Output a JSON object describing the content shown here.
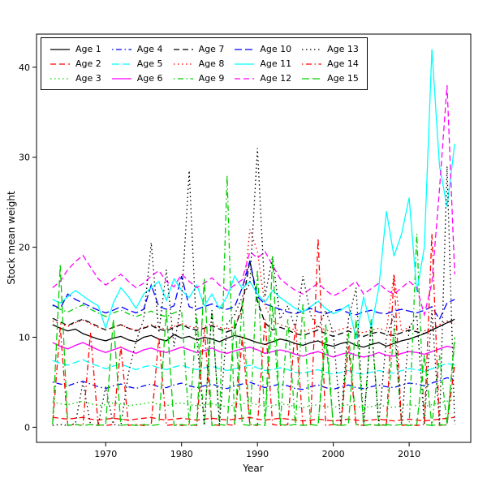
{
  "chart_data": {
    "type": "line",
    "title": "",
    "xlabel": "Year",
    "ylabel": "Stock mean weight",
    "xlim": [
      1963,
      2016
    ],
    "ylim": [
      0,
      42
    ],
    "x_ticks": [
      1970,
      1980,
      1990,
      2000,
      2010
    ],
    "y_ticks": [
      0,
      10,
      20,
      30,
      40
    ],
    "grid": false,
    "legend_position": "top-left-inside",
    "years": [
      1963,
      1964,
      1965,
      1966,
      1967,
      1968,
      1969,
      1970,
      1971,
      1972,
      1973,
      1974,
      1975,
      1976,
      1977,
      1978,
      1979,
      1980,
      1981,
      1982,
      1983,
      1984,
      1985,
      1986,
      1987,
      1988,
      1989,
      1990,
      1991,
      1992,
      1993,
      1994,
      1995,
      1996,
      1997,
      1998,
      1999,
      2000,
      2001,
      2002,
      2003,
      2004,
      2005,
      2006,
      2007,
      2008,
      2009,
      2010,
      2011,
      2012,
      2013,
      2014,
      2015,
      2016
    ],
    "series": [
      {
        "name": "Age 1",
        "color": "#000000",
        "linetype": "solid",
        "values": [
          11.4,
          11.0,
          10.7,
          10.9,
          10.4,
          10.1,
          9.8,
          9.6,
          9.9,
          10.1,
          9.7,
          9.5,
          10.0,
          10.2,
          9.8,
          9.6,
          10.3,
          9.9,
          10.1,
          9.7,
          10.0,
          9.8,
          9.5,
          9.9,
          10.2,
          10.0,
          9.7,
          9.4,
          9.2,
          9.5,
          9.8,
          9.6,
          9.3,
          9.1,
          9.4,
          9.6,
          9.2,
          9.0,
          9.3,
          9.5,
          9.1,
          8.9,
          9.2,
          9.4,
          9.0,
          9.3,
          9.6,
          9.8,
          10.1,
          10.4,
          10.8,
          11.2,
          11.6,
          12.0
        ]
      },
      {
        "name": "Age 2",
        "color": "#FF0000",
        "linetype": "dashed",
        "values": [
          1.1,
          1.0,
          0.9,
          1.0,
          1.1,
          0.9,
          0.8,
          0.9,
          1.0,
          0.9,
          0.8,
          0.9,
          1.0,
          1.1,
          0.9,
          0.8,
          0.9,
          1.0,
          0.9,
          0.8,
          0.9,
          1.0,
          0.9,
          0.8,
          0.9,
          1.0,
          1.1,
          0.9,
          0.8,
          0.9,
          1.0,
          0.9,
          0.8,
          0.7,
          0.8,
          0.9,
          0.8,
          0.7,
          0.8,
          0.9,
          0.8,
          0.7,
          0.8,
          0.9,
          0.8,
          0.7,
          0.8,
          0.9,
          0.8,
          0.7,
          0.8,
          0.9,
          1.0,
          1.1
        ]
      },
      {
        "name": "Age 3",
        "color": "#00CD00",
        "linetype": "dotted",
        "values": [
          2.8,
          2.6,
          2.5,
          2.7,
          2.9,
          2.6,
          2.4,
          2.5,
          2.7,
          2.6,
          2.4,
          2.5,
          2.6,
          2.8,
          2.5,
          2.4,
          2.6,
          2.7,
          2.5,
          2.4,
          2.5,
          2.6,
          2.4,
          2.3,
          2.5,
          2.6,
          2.7,
          2.5,
          2.3,
          2.4,
          2.6,
          2.5,
          2.3,
          2.2,
          2.4,
          2.5,
          2.3,
          2.2,
          2.4,
          2.5,
          2.3,
          2.2,
          2.3,
          2.5,
          2.3,
          2.2,
          2.4,
          2.5,
          2.4,
          2.3,
          2.5,
          2.7,
          2.9,
          3.1
        ]
      },
      {
        "name": "Age 4",
        "color": "#0000FF",
        "linetype": "dotdash",
        "values": [
          5.0,
          4.8,
          4.6,
          4.9,
          5.1,
          4.8,
          4.5,
          4.3,
          4.6,
          4.8,
          4.5,
          4.3,
          4.6,
          4.8,
          4.5,
          4.4,
          4.7,
          4.9,
          4.6,
          4.4,
          4.6,
          4.8,
          4.5,
          4.3,
          4.6,
          4.8,
          5.0,
          4.7,
          4.4,
          4.6,
          4.8,
          4.6,
          4.3,
          4.2,
          4.5,
          4.7,
          4.4,
          4.2,
          4.5,
          4.7,
          4.4,
          4.3,
          4.5,
          4.7,
          4.5,
          4.4,
          4.7,
          4.9,
          4.8,
          4.6,
          4.9,
          5.2,
          5.5,
          5.3
        ]
      },
      {
        "name": "Age 5",
        "color": "#00FFFF",
        "linetype": "longdash",
        "values": [
          7.4,
          7.1,
          6.9,
          7.2,
          7.5,
          7.1,
          6.8,
          6.5,
          6.8,
          7.0,
          6.7,
          6.4,
          6.7,
          6.9,
          6.6,
          6.4,
          6.7,
          6.9,
          6.6,
          6.4,
          6.6,
          6.8,
          6.5,
          6.3,
          6.5,
          6.7,
          6.9,
          6.6,
          6.3,
          6.4,
          6.6,
          6.4,
          6.1,
          6.0,
          6.2,
          6.4,
          6.1,
          5.9,
          6.1,
          6.3,
          6.0,
          5.9,
          6.1,
          6.3,
          6.1,
          6.0,
          6.3,
          6.5,
          6.4,
          6.2,
          6.5,
          6.8,
          7.1,
          6.9
        ]
      },
      {
        "name": "Age 6",
        "color": "#FF00FF",
        "linetype": "solid",
        "values": [
          9.4,
          9.0,
          8.7,
          9.1,
          9.4,
          9.0,
          8.6,
          8.3,
          8.6,
          8.9,
          8.5,
          8.2,
          8.6,
          8.8,
          8.5,
          8.3,
          8.6,
          8.9,
          8.6,
          8.3,
          8.5,
          8.8,
          8.4,
          8.2,
          8.5,
          8.7,
          8.9,
          8.6,
          8.2,
          8.4,
          8.6,
          8.4,
          8.1,
          7.9,
          8.2,
          8.4,
          8.1,
          7.8,
          8.1,
          8.3,
          8.0,
          7.8,
          8.0,
          8.3,
          8.0,
          7.9,
          8.2,
          8.4,
          8.3,
          8.1,
          8.4,
          8.7,
          9.0,
          8.8
        ]
      },
      {
        "name": "Age 7",
        "color": "#000000",
        "linetype": "dashed",
        "values": [
          12.1,
          11.7,
          11.3,
          11.7,
          12.0,
          11.6,
          11.2,
          10.8,
          11.1,
          11.4,
          11.0,
          10.7,
          11.0,
          11.3,
          10.9,
          10.7,
          11.1,
          11.4,
          11.0,
          10.8,
          11.0,
          11.3,
          10.9,
          10.6,
          10.9,
          13.5,
          18.5,
          14.0,
          11.6,
          10.8,
          11.1,
          10.8,
          10.4,
          10.2,
          10.5,
          10.8,
          10.4,
          10.1,
          10.4,
          10.7,
          10.3,
          10.1,
          10.4,
          10.6,
          10.3,
          10.2,
          10.5,
          10.8,
          10.6,
          10.4,
          10.8,
          11.2,
          11.6,
          11.9
        ]
      },
      {
        "name": "Age 8",
        "color": "#FF0000",
        "linetype": "dotted",
        "values": [
          11.8,
          11.5,
          11.2,
          11.6,
          11.9,
          11.5,
          11.1,
          10.8,
          11.1,
          11.4,
          11.0,
          10.8,
          11.1,
          11.4,
          11.1,
          10.9,
          11.2,
          11.5,
          11.2,
          11.0,
          11.2,
          11.5,
          11.1,
          10.9,
          11.2,
          13.0,
          22.0,
          19.5,
          13.5,
          11.8,
          11.4,
          11.1,
          10.8,
          10.6,
          10.9,
          11.2,
          10.8,
          10.6,
          10.9,
          11.1,
          10.7,
          10.5,
          10.8,
          11.0,
          10.7,
          17.0,
          10.6,
          11.2,
          10.9,
          10.7,
          11.0,
          11.4,
          11.8,
          11.5
        ]
      },
      {
        "name": "Age 9",
        "color": "#00CD00",
        "linetype": "dotdash",
        "values": [
          13.5,
          13.1,
          12.8,
          13.2,
          13.6,
          13.1,
          12.7,
          12.3,
          12.7,
          13.0,
          12.6,
          12.3,
          12.6,
          12.9,
          12.5,
          12.3,
          12.7,
          13.0,
          0.3,
          12.5,
          0.2,
          13.0,
          0.3,
          28.0,
          0.2,
          14.0,
          0.3,
          17.5,
          0.2,
          13.5,
          0.3,
          12.0,
          0.2,
          13.8,
          0.3,
          0.2,
          11.5,
          0.3,
          0.2,
          10.5,
          0.3,
          0.2,
          12.0,
          0.3,
          0.2,
          11.0,
          0.3,
          0.2,
          21.5,
          0.3,
          0.2,
          8.0,
          0.3,
          9.5
        ]
      },
      {
        "name": "Age 10",
        "color": "#0000FF",
        "linetype": "longdash",
        "values": [
          13.6,
          13.2,
          14.8,
          14.2,
          13.8,
          13.4,
          13.0,
          12.7,
          13.0,
          13.4,
          13.0,
          12.7,
          13.1,
          15.8,
          13.4,
          13.1,
          13.5,
          16.8,
          13.4,
          13.1,
          13.4,
          13.7,
          13.3,
          13.1,
          13.4,
          15.5,
          18.5,
          14.5,
          13.7,
          13.4,
          13.1,
          12.8,
          12.6,
          12.9,
          13.2,
          12.8,
          12.6,
          12.9,
          13.1,
          12.7,
          12.5,
          12.8,
          13.0,
          12.7,
          12.6,
          12.9,
          13.1,
          12.9,
          12.7,
          13.0,
          13.4,
          12.0,
          13.8,
          14.2
        ]
      },
      {
        "name": "Age 11",
        "color": "#00FFFF",
        "linetype": "solid",
        "values": [
          14.2,
          13.8,
          14.5,
          15.2,
          14.6,
          14.0,
          13.5,
          11.0,
          13.8,
          15.5,
          14.5,
          13.2,
          14.8,
          15.5,
          16.2,
          14.1,
          16.5,
          15.2,
          14.4,
          15.8,
          13.5,
          14.8,
          13.2,
          14.5,
          16.8,
          15.4,
          16.2,
          14.8,
          13.9,
          15.2,
          14.4,
          13.8,
          13.2,
          12.8,
          13.4,
          14.0,
          13.2,
          12.6,
          13.0,
          13.6,
          9.8,
          14.5,
          11.0,
          15.5,
          24.0,
          19.0,
          21.5,
          25.5,
          15.0,
          20.0,
          42.0,
          29.0,
          24.5,
          31.5
        ]
      },
      {
        "name": "Age 12",
        "color": "#FF00FF",
        "linetype": "dashed",
        "values": [
          15.5,
          16.2,
          17.5,
          18.4,
          19.1,
          17.8,
          16.5,
          15.8,
          16.4,
          17.0,
          16.2,
          15.5,
          16.0,
          16.8,
          17.4,
          16.2,
          15.6,
          17.0,
          16.2,
          15.5,
          16.0,
          16.6,
          15.8,
          15.2,
          15.8,
          16.4,
          19.5,
          18.8,
          19.5,
          18.0,
          16.5,
          15.8,
          15.2,
          14.8,
          15.4,
          16.0,
          15.2,
          14.6,
          15.0,
          15.6,
          16.2,
          14.8,
          15.4,
          16.0,
          15.2,
          14.8,
          15.5,
          16.2,
          15.5,
          12.5,
          16.0,
          26.5,
          38.0,
          17.0
        ]
      },
      {
        "name": "Age 13",
        "color": "#000000",
        "linetype": "dotted",
        "values": [
          0.2,
          0.3,
          0.2,
          0.4,
          5.0,
          0.3,
          0.2,
          4.5,
          0.3,
          0.2,
          6.0,
          9.5,
          12.0,
          20.5,
          10.5,
          17.5,
          9.0,
          14.0,
          28.5,
          10.0,
          0.2,
          13.0,
          0.3,
          11.5,
          12.5,
          14.5,
          16.0,
          31.0,
          14.5,
          19.0,
          12.0,
          13.5,
          11.0,
          16.8,
          12.5,
          11.0,
          13.0,
          10.5,
          0.3,
          12.0,
          15.5,
          0.2,
          11.5,
          0.3,
          10.0,
          12.5,
          0.2,
          11.0,
          12.5,
          0.3,
          13.0,
          0.2,
          29.0,
          0.3
        ]
      },
      {
        "name": "Age 14",
        "color": "#FF0000",
        "linetype": "dotdash",
        "values": [
          0.3,
          11.2,
          0.2,
          0.3,
          0.2,
          10.5,
          0.3,
          0.2,
          0.3,
          9.0,
          0.2,
          0.3,
          0.2,
          0.3,
          10.0,
          0.2,
          0.3,
          0.2,
          0.3,
          0.2,
          11.0,
          0.3,
          0.2,
          0.3,
          0.2,
          10.0,
          0.3,
          0.2,
          12.0,
          0.3,
          0.2,
          0.3,
          11.5,
          0.2,
          0.3,
          21.0,
          0.2,
          0.3,
          0.2,
          9.0,
          0.3,
          0.2,
          0.3,
          0.2,
          0.3,
          17.0,
          0.2,
          0.3,
          0.2,
          0.3,
          21.5,
          0.2,
          0.3,
          7.0
        ]
      },
      {
        "name": "Age 15",
        "color": "#00CD00",
        "linetype": "longdash",
        "values": [
          0.3,
          18.0,
          0.2,
          0.3,
          0.2,
          0.3,
          0.2,
          0.3,
          12.0,
          0.2,
          0.3,
          0.2,
          0.3,
          0.2,
          0.3,
          13.0,
          0.2,
          0.3,
          0.2,
          0.3,
          16.5,
          0.2,
          0.3,
          0.2,
          12.0,
          0.3,
          0.2,
          0.3,
          0.2,
          19.0,
          0.3,
          0.2,
          0.3,
          0.2,
          0.3,
          0.2,
          10.0,
          0.3,
          0.2,
          0.3,
          12.0,
          0.2,
          0.3,
          0.2,
          0.3,
          0.2,
          0.3,
          0.2,
          0.3,
          8.0,
          0.2,
          0.3,
          0.2,
          10.0
        ]
      }
    ]
  }
}
